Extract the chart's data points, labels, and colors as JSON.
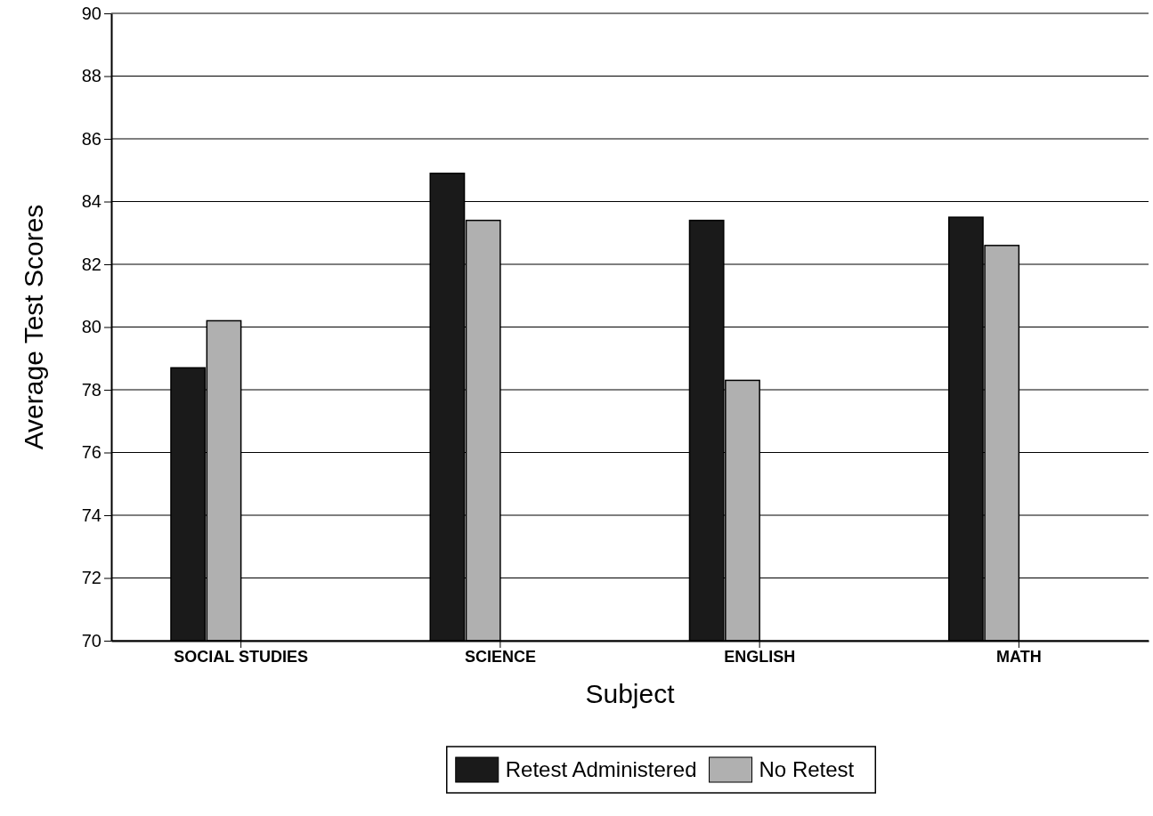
{
  "chart_data": {
    "type": "bar",
    "xlabel": "Subject",
    "ylabel": "Average Test Scores",
    "categories": [
      "SOCIAL STUDIES",
      "SCIENCE",
      "ENGLISH",
      "MATH"
    ],
    "series": [
      {
        "name": "Retest Administered",
        "color": "#1a1a1a",
        "values": [
          78.7,
          84.9,
          83.4,
          83.5
        ]
      },
      {
        "name": "No Retest",
        "color": "#b0b0b0",
        "values": [
          80.2,
          83.4,
          78.3,
          82.6
        ]
      }
    ],
    "ylim": [
      70,
      90
    ],
    "yticks": [
      70,
      72,
      74,
      76,
      78,
      80,
      82,
      84,
      86,
      88,
      90
    ],
    "grid": "y",
    "legend": "bottom"
  }
}
